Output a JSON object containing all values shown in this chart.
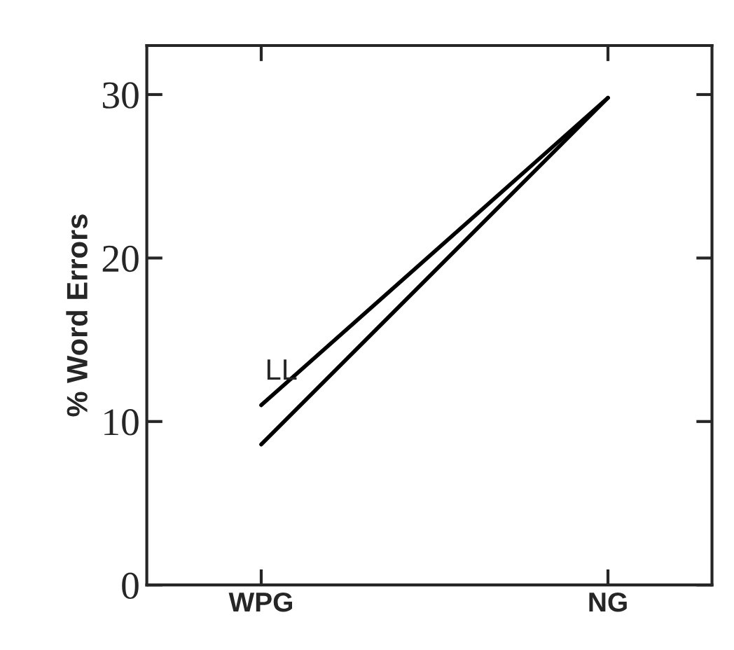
{
  "chart_data": {
    "type": "line",
    "ylabel": "% Word Errors",
    "categories": [
      "WPG",
      "NG"
    ],
    "series": [
      {
        "name": "LL",
        "color": "#000000",
        "values": [
          11,
          29.8
        ]
      },
      {
        "color": "#000000",
        "values": [
          8.6,
          29.8
        ]
      }
    ],
    "ylim": [
      0,
      33
    ],
    "yticks": [
      0,
      10,
      20,
      30
    ],
    "grid": false,
    "legend": false,
    "marker": "none",
    "line_style": "solid"
  }
}
